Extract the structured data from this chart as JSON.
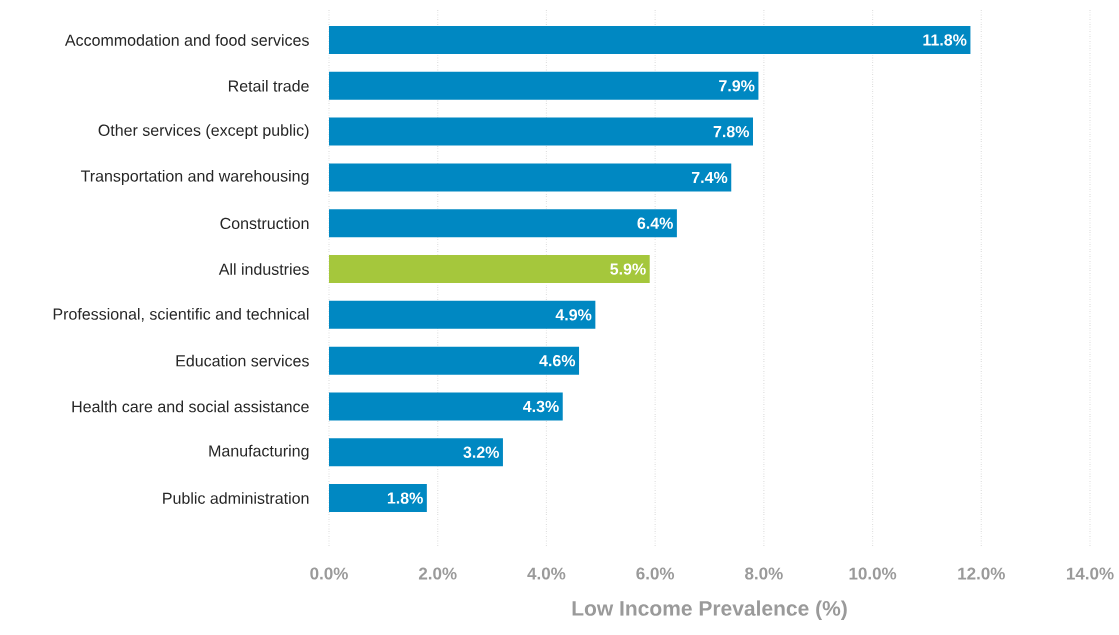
{
  "chart_data": {
    "type": "bar",
    "orientation": "horizontal",
    "xlabel": "Low Income Prevalence (%)",
    "categories": [
      "Accommodation and food services",
      "Retail trade",
      "Other services (except public)",
      "Transportation and warehousing",
      "Construction",
      "All industries",
      "Professional, scientific and technical",
      "Education services",
      "Health care and social assistance",
      "Manufacturing",
      "Public administration"
    ],
    "values": [
      11.8,
      7.9,
      7.8,
      7.4,
      6.4,
      5.9,
      4.9,
      4.6,
      4.3,
      3.2,
      1.8
    ],
    "value_labels": [
      "11.8%",
      "7.9%",
      "7.8%",
      "7.4%",
      "6.4%",
      "5.9%",
      "4.9%",
      "4.6%",
      "4.3%",
      "3.2%",
      "1.8%"
    ],
    "colors": [
      "#0088c2",
      "#0088c2",
      "#0088c2",
      "#0088c2",
      "#0088c2",
      "#a5c73c",
      "#0088c2",
      "#0088c2",
      "#0088c2",
      "#0088c2",
      "#0088c2"
    ],
    "xlim": [
      0,
      14
    ],
    "xticks": [
      {
        "value": 0,
        "label": "0.0%"
      },
      {
        "value": 2,
        "label": "2.0%"
      },
      {
        "value": 4,
        "label": "4.0%"
      },
      {
        "value": 6,
        "label": "6.0%"
      },
      {
        "value": 8,
        "label": "8.0%"
      },
      {
        "value": 10,
        "label": "10.0%"
      },
      {
        "value": 12,
        "label": "12.0%"
      },
      {
        "value": 14,
        "label": "14.0%"
      }
    ],
    "grid": "x"
  }
}
